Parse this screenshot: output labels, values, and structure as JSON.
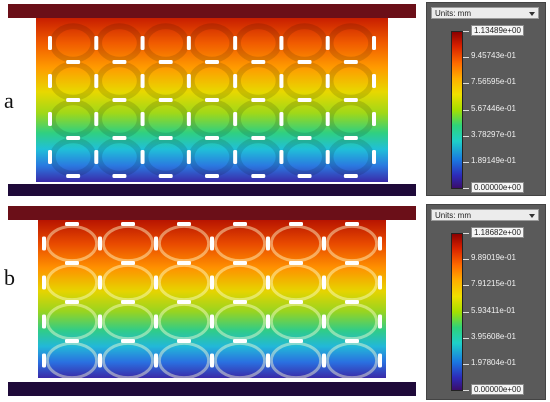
{
  "panels": [
    {
      "letter": "a",
      "units_label": "Units: mm",
      "colorbar_labels": [
        "1.13489e+00",
        "9.45743e-01",
        "7.56595e-01",
        "5.67446e-01",
        "3.78297e-01",
        "1.89149e-01",
        "0.00000e+00"
      ]
    },
    {
      "letter": "b",
      "units_label": "Units: mm",
      "colorbar_labels": [
        "1.18682e+00",
        "9.89019e-01",
        "7.91215e-01",
        "5.93411e-01",
        "3.95608e-01",
        "1.97804e-01",
        "0.00000e+00"
      ]
    }
  ],
  "colors": {
    "plate": "#6b0f18",
    "plate_bottom": "#1f0a3a",
    "hole": "#ffffff"
  }
}
